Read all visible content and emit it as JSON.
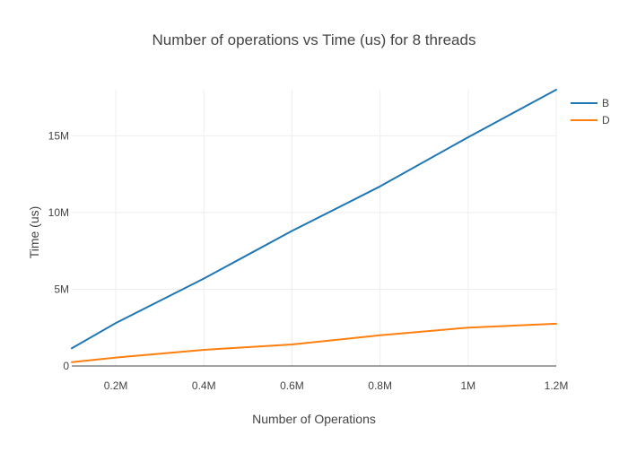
{
  "chart_data": {
    "type": "line",
    "title": "Number of operations vs Time (us) for 8 threads",
    "xlabel": "Number of Operations",
    "ylabel": "Time (us)",
    "xlim": [
      100000,
      1200000
    ],
    "ylim": [
      0,
      18000000
    ],
    "x_ticks": [
      {
        "value": 200000,
        "label": "0.2M"
      },
      {
        "value": 400000,
        "label": "0.4M"
      },
      {
        "value": 600000,
        "label": "0.6M"
      },
      {
        "value": 800000,
        "label": "0.8M"
      },
      {
        "value": 1000000,
        "label": "1M"
      },
      {
        "value": 1200000,
        "label": "1.2M"
      }
    ],
    "y_ticks": [
      {
        "value": 0,
        "label": "0"
      },
      {
        "value": 5000000,
        "label": "5M"
      },
      {
        "value": 10000000,
        "label": "10M"
      },
      {
        "value": 15000000,
        "label": "15M"
      }
    ],
    "x": [
      100000,
      200000,
      400000,
      600000,
      800000,
      1000000,
      1200000
    ],
    "series": [
      {
        "name": "B",
        "color": "#1f77b4",
        "values": [
          1150000,
          2800000,
          5700000,
          8800000,
          11700000,
          14900000,
          18000000
        ]
      },
      {
        "name": "D",
        "color": "#ff7f0e",
        "values": [
          250000,
          550000,
          1050000,
          1400000,
          2000000,
          2500000,
          2750000
        ]
      }
    ],
    "grid": true,
    "legend_position": "top-right"
  }
}
